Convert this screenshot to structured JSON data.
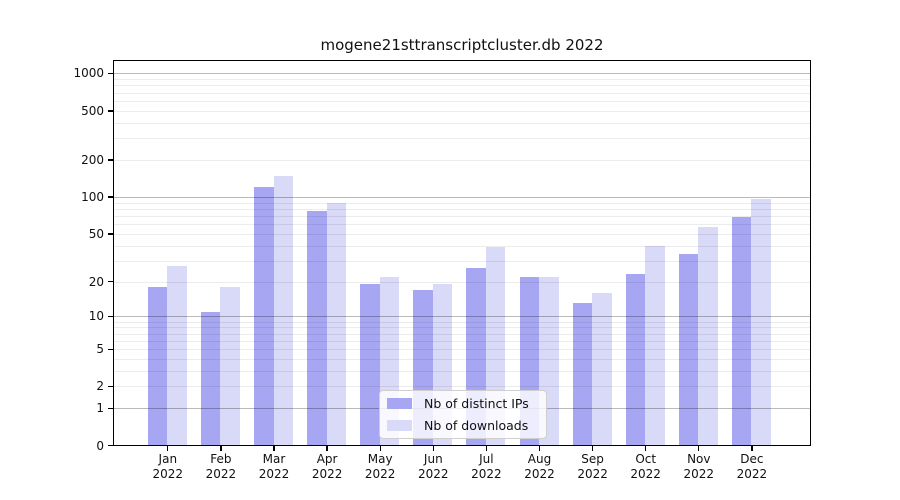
{
  "chart_data": {
    "type": "bar",
    "title": "mogene21sttranscriptcluster.db 2022",
    "categories": [
      "Jan",
      "Feb",
      "Mar",
      "Apr",
      "May",
      "Jun",
      "Jul",
      "Aug",
      "Sep",
      "Oct",
      "Nov",
      "Dec"
    ],
    "x_tick_year_line": "2022",
    "series": [
      {
        "name": "Nb of distinct IPs",
        "color": "#a6a6f2",
        "values": [
          18,
          11,
          120,
          77,
          19,
          17,
          26,
          22,
          13,
          23,
          34,
          68
        ]
      },
      {
        "name": "Nb of downloads",
        "color": "#d9d9f8",
        "values": [
          27,
          18,
          147,
          89,
          22,
          19,
          39,
          22,
          16,
          40,
          57,
          96
        ]
      }
    ],
    "y_ticks": [
      0,
      1,
      2,
      5,
      10,
      20,
      50,
      100,
      200,
      500,
      1000
    ],
    "y_scale": "log10(value+1)",
    "ylim": [
      0,
      1290
    ],
    "xlabel": "",
    "ylabel": "",
    "grid": "horizontal, major decades dark + minor log subdivisions light",
    "legend_position": "lower center, inside plot",
    "colors": {
      "distinct_ips_bar": "#a6a6f2",
      "downloads_bar": "#d9d9f8",
      "axis": "#000000",
      "text": "#111111"
    }
  }
}
